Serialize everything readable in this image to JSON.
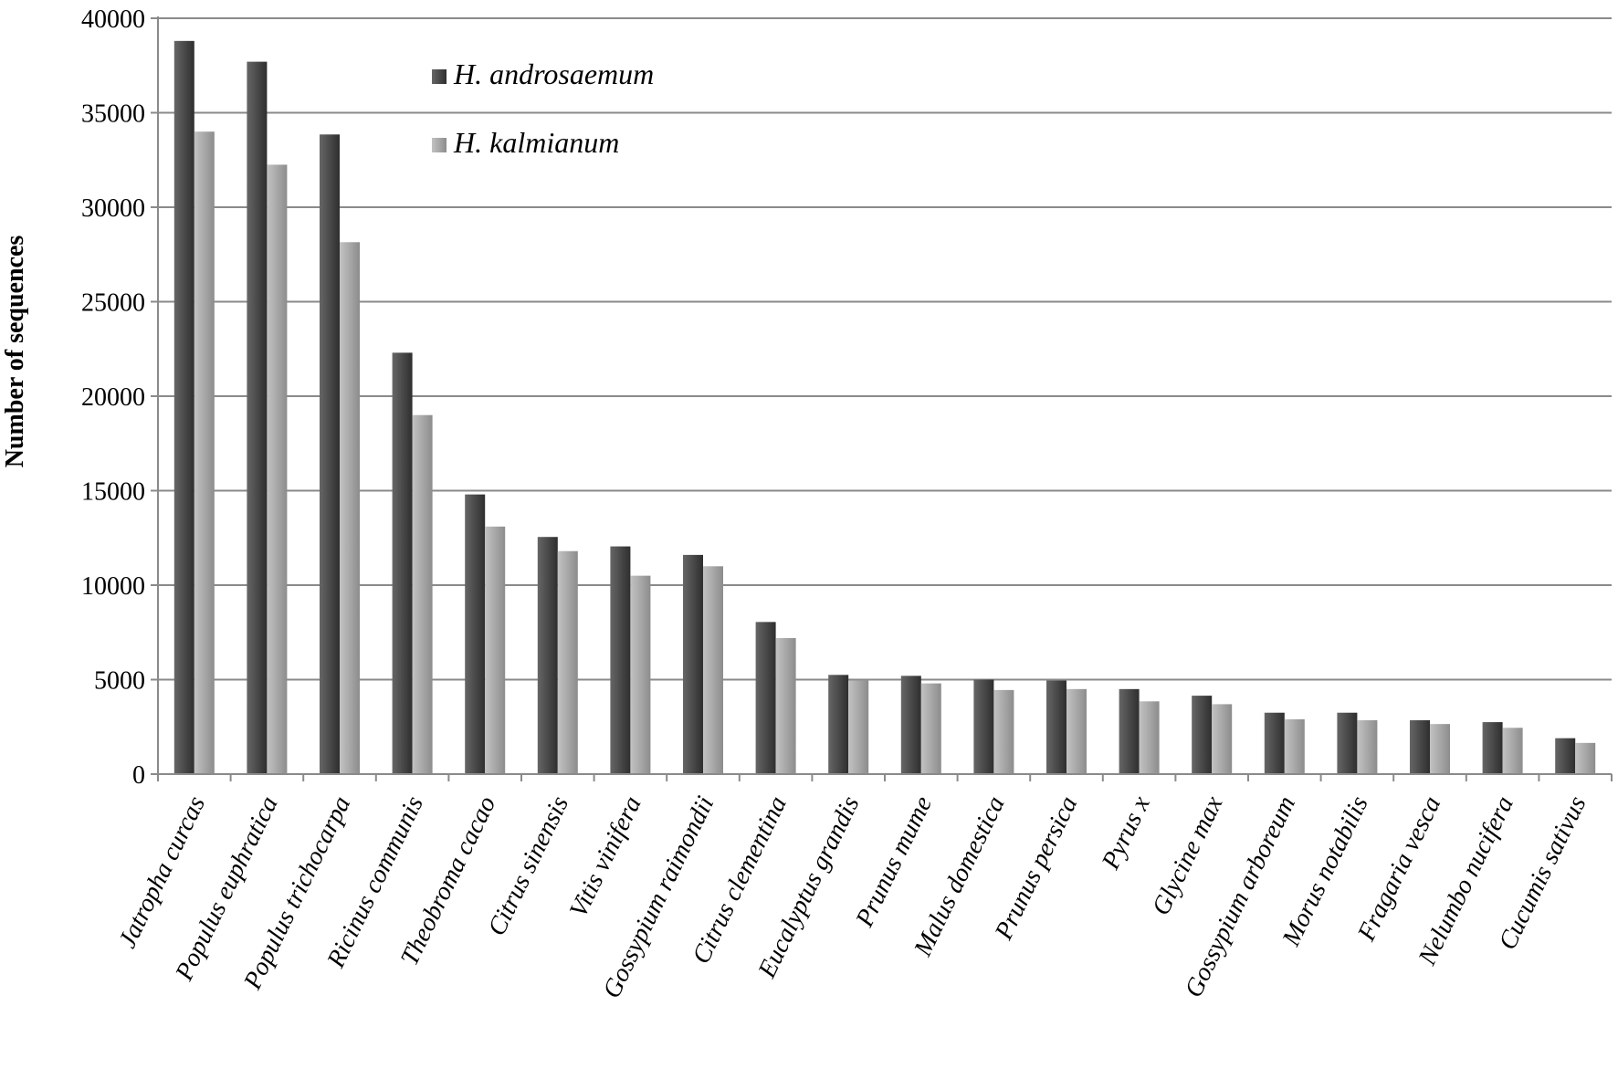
{
  "chart_data": {
    "type": "bar",
    "ylabel": "Number of sequences",
    "xlabel": "",
    "ylim": [
      0,
      40000
    ],
    "yticks": [
      "0",
      "5000",
      "10000",
      "15000",
      "20000",
      "25000",
      "30000",
      "35000",
      "40000"
    ],
    "grid": true,
    "legend_position": "top-center",
    "categories": [
      "Jatropha curcas",
      "Populus euphratica",
      "Populus trichocarpa",
      "Ricinus communis",
      "Theobroma cacao",
      "Citrus sinensis",
      "Vitis vinifera",
      "Gossypium raimondii",
      "Citrus clementina",
      "Eucalyptus grandis",
      "Prunus mume",
      "Malus domestica",
      "Prunus persica",
      "Pyrus x",
      "Glycine max",
      "Gossypium arboreum",
      "Morus notabilis",
      "Fragaria vesca",
      "Nelumbo nucifera",
      "Cucumis sativus"
    ],
    "series": [
      {
        "name": "H. androsaemum",
        "color": "#555555",
        "values": [
          38800,
          37700,
          33850,
          22300,
          14800,
          12550,
          12050,
          11600,
          8050,
          5250,
          5200,
          5000,
          4950,
          4500,
          4150,
          3250,
          3250,
          2850,
          2750,
          1900
        ]
      },
      {
        "name": "H. kalmianum",
        "color": "#aaaaaa",
        "values": [
          34000,
          32250,
          28150,
          19000,
          13100,
          11800,
          10500,
          11000,
          7200,
          4950,
          4800,
          4450,
          4500,
          3850,
          3700,
          2900,
          2850,
          2650,
          2450,
          1650
        ]
      }
    ]
  }
}
